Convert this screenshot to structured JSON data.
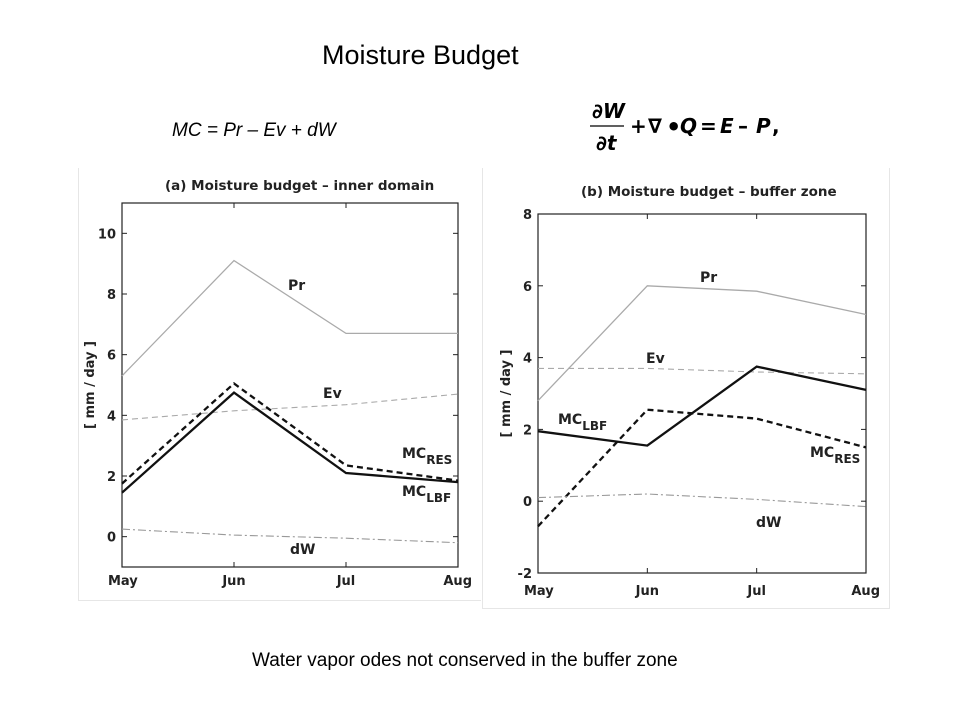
{
  "slide": {
    "title": "Moisture Budget",
    "formula_left": "MC = Pr – Ev + dW",
    "formula_right": {
      "numerator": "∂W",
      "denominator": "∂t",
      "rest_plus": "+",
      "nabla": "∇",
      "dot": "•",
      "q": "Q",
      "equals": "=",
      "e": "E",
      "minus": "–",
      "p": "P",
      "comma": ","
    },
    "caption": "Water vapor odes not conserved in the buffer zone"
  },
  "chart_data": [
    {
      "type": "line",
      "title": "(a) Moisture budget – inner domain",
      "ylabel": "[ mm / day ]",
      "xlabel": "",
      "categories": [
        "May",
        "Jun",
        "Jul",
        "Aug"
      ],
      "ylim": [
        -1,
        11
      ],
      "yticks": [
        "0",
        "2",
        "4",
        "6",
        "8",
        "10"
      ],
      "grid": false,
      "series": [
        {
          "name": "Pr",
          "values": [
            5.3,
            9.1,
            6.7,
            6.7
          ],
          "style": "solid",
          "color": "#aaaaaa",
          "width": 1.3
        },
        {
          "name": "Ev",
          "values": [
            3.85,
            4.15,
            4.35,
            4.7
          ],
          "style": "dashed",
          "color": "#aaaaaa",
          "width": 1.1
        },
        {
          "name": "MC_RES",
          "values": [
            1.75,
            5.05,
            2.35,
            1.85
          ],
          "style": "dashed",
          "color": "#111111",
          "width": 2.3
        },
        {
          "name": "MC_LBF",
          "values": [
            1.45,
            4.75,
            2.1,
            1.8
          ],
          "style": "solid",
          "color": "#111111",
          "width": 2.3
        },
        {
          "name": "dW",
          "values": [
            0.25,
            0.05,
            -0.05,
            -0.2
          ],
          "style": "dashdot",
          "color": "#999999",
          "width": 1.1
        }
      ],
      "annotations": [
        {
          "series": "Pr",
          "label": "Pr"
        },
        {
          "series": "Ev",
          "label": "Ev"
        },
        {
          "series": "MC_RES",
          "label": "MC",
          "sub": "RES"
        },
        {
          "series": "MC_LBF",
          "label": "MC",
          "sub": "LBF"
        },
        {
          "series": "dW",
          "label": "dW"
        }
      ]
    },
    {
      "type": "line",
      "title": "(b) Moisture budget – buffer zone",
      "ylabel": "[ mm / day ]",
      "xlabel": "",
      "categories": [
        "May",
        "Jun",
        "Jul",
        "Aug"
      ],
      "ylim": [
        -2,
        8
      ],
      "yticks": [
        "-2",
        "0",
        "2",
        "4",
        "6",
        "8"
      ],
      "grid": false,
      "series": [
        {
          "name": "Pr",
          "values": [
            2.8,
            6.0,
            5.85,
            5.2
          ],
          "style": "solid",
          "color": "#aaaaaa",
          "width": 1.3
        },
        {
          "name": "Ev",
          "values": [
            3.7,
            3.7,
            3.6,
            3.55
          ],
          "style": "dashed",
          "color": "#aaaaaa",
          "width": 1.1
        },
        {
          "name": "MC_LBF",
          "values": [
            1.95,
            1.55,
            3.75,
            3.1
          ],
          "style": "solid",
          "color": "#111111",
          "width": 2.3
        },
        {
          "name": "MC_RES",
          "values": [
            -0.7,
            2.55,
            2.3,
            1.5
          ],
          "style": "dashed",
          "color": "#111111",
          "width": 2.3
        },
        {
          "name": "dW",
          "values": [
            0.1,
            0.2,
            0.05,
            -0.15
          ],
          "style": "dashdot",
          "color": "#999999",
          "width": 1.1
        }
      ],
      "annotations": [
        {
          "series": "Pr",
          "label": "Pr"
        },
        {
          "series": "Ev",
          "label": "Ev"
        },
        {
          "series": "MC_LBF",
          "label": "MC",
          "sub": "LBF"
        },
        {
          "series": "MC_RES",
          "label": "MC",
          "sub": "RES"
        },
        {
          "series": "dW",
          "label": "dW"
        }
      ]
    }
  ]
}
